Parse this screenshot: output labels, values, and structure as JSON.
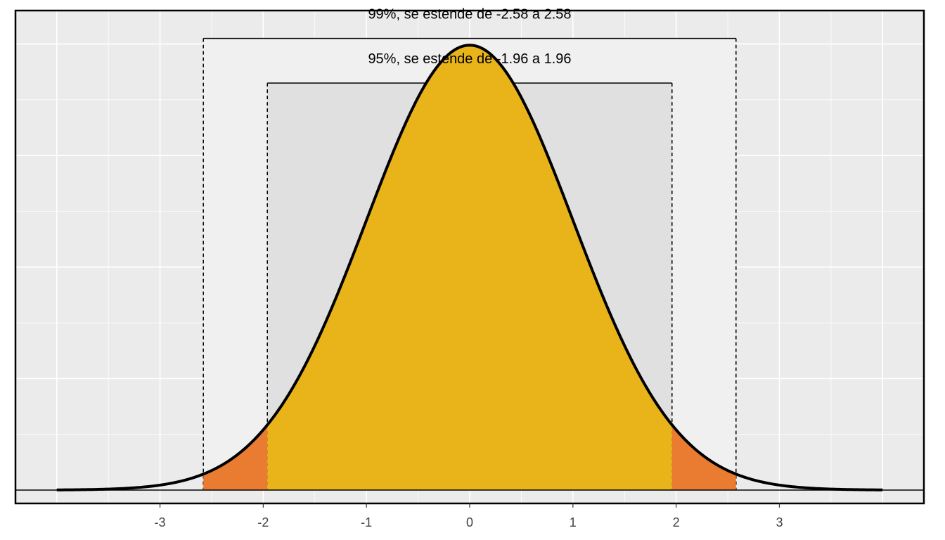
{
  "chart_data": {
    "type": "area",
    "distribution": "standard normal",
    "x_range": [
      -4,
      4
    ],
    "xlim": [
      -4.4,
      4.4
    ],
    "ylim": [
      -0.012,
      0.43
    ],
    "x_ticks": [
      -3,
      -2,
      -1,
      0,
      1,
      2,
      3
    ],
    "x_tick_labels": [
      "-3",
      "-2",
      "-1",
      "0",
      "1",
      "2",
      "3"
    ],
    "xlabel": "",
    "ylabel": "",
    "y_tick_labels_shown": false,
    "grid": true,
    "intervals": [
      {
        "level": "99%",
        "lower": -2.58,
        "upper": 2.58,
        "label": "99%, se estende de -2.58 a 2.58"
      },
      {
        "level": "95%",
        "lower": -1.96,
        "upper": 1.96,
        "label": "95%, se estende de -1.96 a 1.96"
      }
    ],
    "colors": {
      "panel_background": "#ebebeb",
      "grid": "#ffffff",
      "band_99": "#f0f0f0",
      "band_95": "#e0e0e0",
      "area_95": "#e9b31a",
      "area_tails": "#e97c30",
      "curve": "#000000"
    }
  }
}
